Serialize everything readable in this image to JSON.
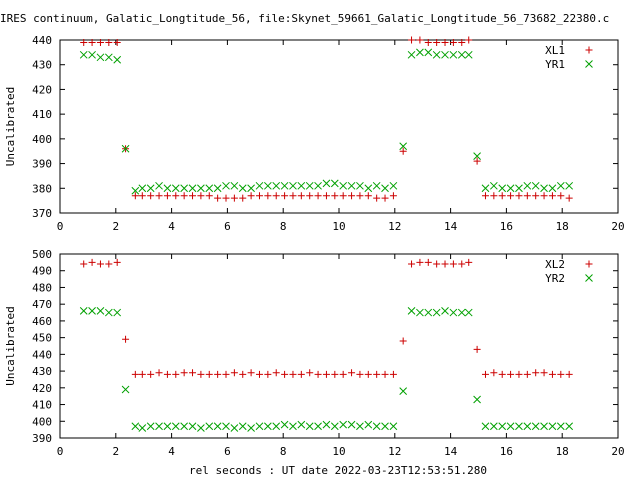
{
  "title": "IRES continuum, Galatic_Longtitude_56, file:Skynet_59661_Galatic_Longtitude_56_73682_22380.c",
  "xlabel": "rel seconds : UT date 2022-03-23T12:53:51.280",
  "chart_data": [
    {
      "type": "scatter",
      "ylabel": "Uncalibrated",
      "xlim": [
        0,
        20
      ],
      "ylim": [
        370,
        440
      ],
      "xticks": [
        "0",
        "2",
        "4",
        "6",
        "8",
        "10",
        "12",
        "14",
        "16",
        "18",
        "20"
      ],
      "yticks": [
        "370",
        "380",
        "390",
        "400",
        "410",
        "420",
        "430",
        "440"
      ],
      "legend_position": "top-right",
      "series": [
        {
          "name": "XL1",
          "marker": "plus",
          "color": "#cc0000",
          "x": [
            0.85,
            1.15,
            1.45,
            1.75,
            2.05,
            2.35,
            2.7,
            2.95,
            3.25,
            3.55,
            3.85,
            4.15,
            4.45,
            4.75,
            5.05,
            5.35,
            5.65,
            5.95,
            6.25,
            6.55,
            6.85,
            7.15,
            7.45,
            7.75,
            8.05,
            8.35,
            8.65,
            8.95,
            9.25,
            9.55,
            9.85,
            10.15,
            10.45,
            10.75,
            11.05,
            11.35,
            11.65,
            11.95,
            12.3,
            12.6,
            12.9,
            13.2,
            13.5,
            13.8,
            14.1,
            14.4,
            14.65,
            14.95,
            15.25,
            15.55,
            15.85,
            16.15,
            16.45,
            16.75,
            17.05,
            17.35,
            17.65,
            17.95,
            18.25
          ],
          "y": [
            439,
            439,
            439,
            439,
            439,
            396,
            377,
            377,
            377,
            377,
            377,
            377,
            377,
            377,
            377,
            377,
            376,
            376,
            376,
            376,
            377,
            377,
            377,
            377,
            377,
            377,
            377,
            377,
            377,
            377,
            377,
            377,
            377,
            377,
            377,
            376,
            376,
            377,
            395,
            440,
            440,
            439,
            439,
            439,
            439,
            439,
            440,
            391,
            377,
            377,
            377,
            377,
            377,
            377,
            377,
            377,
            377,
            377,
            376
          ]
        },
        {
          "name": "YR1",
          "marker": "cross",
          "color": "#00a000",
          "x": [
            0.85,
            1.15,
            1.45,
            1.75,
            2.05,
            2.35,
            2.7,
            2.95,
            3.25,
            3.55,
            3.85,
            4.15,
            4.45,
            4.75,
            5.05,
            5.35,
            5.65,
            5.95,
            6.25,
            6.55,
            6.85,
            7.15,
            7.45,
            7.75,
            8.05,
            8.35,
            8.65,
            8.95,
            9.25,
            9.55,
            9.85,
            10.15,
            10.45,
            10.75,
            11.05,
            11.35,
            11.65,
            11.95,
            12.3,
            12.6,
            12.9,
            13.2,
            13.5,
            13.8,
            14.1,
            14.4,
            14.65,
            14.95,
            15.25,
            15.55,
            15.85,
            16.15,
            16.45,
            16.75,
            17.05,
            17.35,
            17.65,
            17.95,
            18.25
          ],
          "y": [
            434,
            434,
            433,
            433,
            432,
            396,
            379,
            380,
            380,
            381,
            380,
            380,
            380,
            380,
            380,
            380,
            380,
            381,
            381,
            380,
            380,
            381,
            381,
            381,
            381,
            381,
            381,
            381,
            381,
            382,
            382,
            381,
            381,
            381,
            380,
            381,
            380,
            381,
            397,
            434,
            435,
            435,
            434,
            434,
            434,
            434,
            434,
            393,
            380,
            381,
            380,
            380,
            380,
            381,
            381,
            380,
            380,
            381,
            381
          ]
        }
      ]
    },
    {
      "type": "scatter",
      "ylabel": "Uncalibrated",
      "xlim": [
        0,
        20
      ],
      "ylim": [
        390,
        500
      ],
      "xticks": [
        "0",
        "2",
        "4",
        "6",
        "8",
        "10",
        "12",
        "14",
        "16",
        "18",
        "20"
      ],
      "yticks": [
        "390",
        "400",
        "410",
        "420",
        "430",
        "440",
        "450",
        "460",
        "470",
        "480",
        "490",
        "500"
      ],
      "legend_position": "top-right",
      "series": [
        {
          "name": "XL2",
          "marker": "plus",
          "color": "#cc0000",
          "x": [
            0.85,
            1.15,
            1.45,
            1.75,
            2.05,
            2.35,
            2.7,
            2.95,
            3.25,
            3.55,
            3.85,
            4.15,
            4.45,
            4.75,
            5.05,
            5.35,
            5.65,
            5.95,
            6.25,
            6.55,
            6.85,
            7.15,
            7.45,
            7.75,
            8.05,
            8.35,
            8.65,
            8.95,
            9.25,
            9.55,
            9.85,
            10.15,
            10.45,
            10.75,
            11.05,
            11.35,
            11.65,
            11.95,
            12.3,
            12.6,
            12.9,
            13.2,
            13.5,
            13.8,
            14.1,
            14.4,
            14.65,
            14.95,
            15.25,
            15.55,
            15.85,
            16.15,
            16.45,
            16.75,
            17.05,
            17.35,
            17.65,
            17.95,
            18.25
          ],
          "y": [
            494,
            495,
            494,
            494,
            495,
            449,
            428,
            428,
            428,
            429,
            428,
            428,
            429,
            429,
            428,
            428,
            428,
            428,
            429,
            428,
            429,
            428,
            428,
            429,
            428,
            428,
            428,
            429,
            428,
            428,
            428,
            428,
            429,
            428,
            428,
            428,
            428,
            428,
            448,
            494,
            495,
            495,
            494,
            494,
            494,
            494,
            495,
            443,
            428,
            429,
            428,
            428,
            428,
            428,
            429,
            429,
            428,
            428,
            428
          ]
        },
        {
          "name": "YR2",
          "marker": "cross",
          "color": "#00a000",
          "x": [
            0.85,
            1.15,
            1.45,
            1.75,
            2.05,
            2.35,
            2.7,
            2.95,
            3.25,
            3.55,
            3.85,
            4.15,
            4.45,
            4.75,
            5.05,
            5.35,
            5.65,
            5.95,
            6.25,
            6.55,
            6.85,
            7.15,
            7.45,
            7.75,
            8.05,
            8.35,
            8.65,
            8.95,
            9.25,
            9.55,
            9.85,
            10.15,
            10.45,
            10.75,
            11.05,
            11.35,
            11.65,
            11.95,
            12.3,
            12.6,
            12.9,
            13.2,
            13.5,
            13.8,
            14.1,
            14.4,
            14.65,
            14.95,
            15.25,
            15.55,
            15.85,
            16.15,
            16.45,
            16.75,
            17.05,
            17.35,
            17.65,
            17.95,
            18.25
          ],
          "y": [
            466,
            466,
            466,
            465,
            465,
            419,
            397,
            396,
            397,
            397,
            397,
            397,
            397,
            397,
            396,
            397,
            397,
            397,
            396,
            397,
            396,
            397,
            397,
            397,
            398,
            397,
            398,
            397,
            397,
            398,
            397,
            398,
            398,
            397,
            398,
            397,
            397,
            397,
            418,
            466,
            465,
            465,
            465,
            466,
            465,
            465,
            465,
            413,
            397,
            397,
            397,
            397,
            397,
            397,
            397,
            397,
            397,
            397,
            397
          ]
        }
      ]
    }
  ]
}
